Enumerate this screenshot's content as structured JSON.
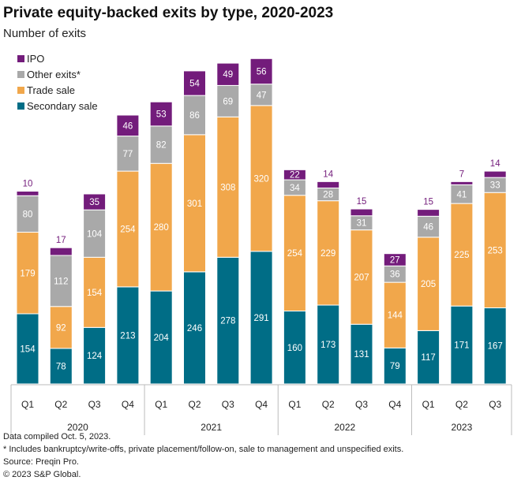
{
  "chart_data": {
    "type": "stacked-bar",
    "title": "Private equity-backed exits by type, 2020-2023",
    "subtitle": "Number of exits",
    "categories": [
      "Q1",
      "Q2",
      "Q3",
      "Q4",
      "Q1",
      "Q2",
      "Q3",
      "Q4",
      "Q1",
      "Q2",
      "Q3",
      "Q4",
      "Q1",
      "Q2",
      "Q3"
    ],
    "years": [
      {
        "label": "2020",
        "count": 4
      },
      {
        "label": "2021",
        "count": 4
      },
      {
        "label": "2022",
        "count": 4
      },
      {
        "label": "2023",
        "count": 3
      }
    ],
    "series": [
      {
        "name": "Secondary sale",
        "color": "#006d86",
        "values": [
          154,
          78,
          124,
          213,
          204,
          246,
          278,
          291,
          160,
          173,
          131,
          79,
          117,
          171,
          167
        ]
      },
      {
        "name": "Trade sale",
        "color": "#f1a74b",
        "values": [
          179,
          92,
          154,
          254,
          280,
          301,
          308,
          320,
          254,
          229,
          207,
          144,
          205,
          225,
          253
        ]
      },
      {
        "name": "Other exits*",
        "color": "#a9a9a9",
        "values": [
          80,
          112,
          104,
          77,
          82,
          86,
          69,
          47,
          34,
          28,
          31,
          36,
          46,
          41,
          33
        ]
      },
      {
        "name": "IPO",
        "color": "#731c7b",
        "values": [
          10,
          17,
          35,
          46,
          53,
          54,
          49,
          56,
          22,
          14,
          15,
          27,
          15,
          7,
          14
        ]
      }
    ],
    "legend_position": "top-left",
    "grid": false
  },
  "notes": [
    "Data compiled Oct. 5, 2023.",
    "* Includes bankruptcy/write-offs, private placement/follow-on, sale to management and unspecified exits.",
    "Source: Preqin Pro.",
    "© 2023 S&P Global."
  ]
}
